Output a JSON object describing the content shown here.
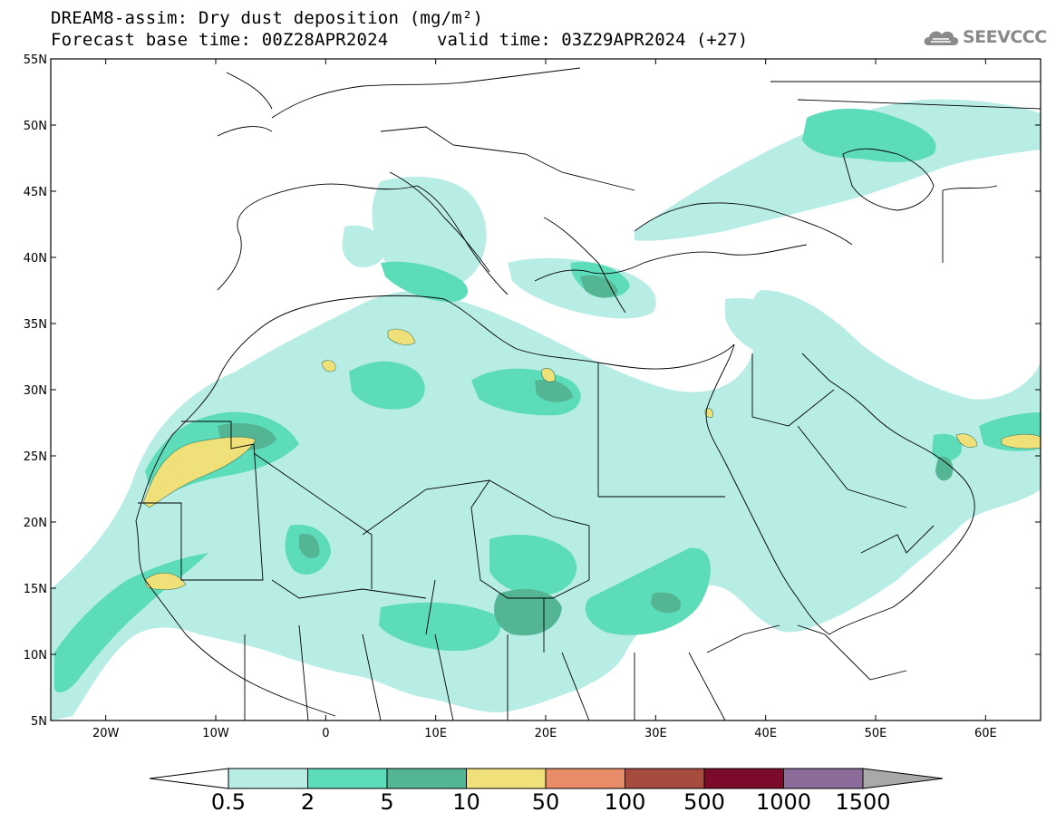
{
  "header": {
    "title_line1": "DREAM8-assim: Dry dust deposition (mg/m²)",
    "title_line2": "Forecast base time: 00Z28APR2024",
    "valid_time": "valid time: 03Z29APR2024 (+27)",
    "logo_text": "SEEVCCC",
    "logo_icon": "cloud-logo-icon"
  },
  "map": {
    "lon_range": [
      -25,
      65
    ],
    "lat_range": [
      5,
      55
    ],
    "lon_ticks": [
      {
        "value": -20,
        "label": "20W"
      },
      {
        "value": -10,
        "label": "10W"
      },
      {
        "value": 0,
        "label": "0"
      },
      {
        "value": 10,
        "label": "10E"
      },
      {
        "value": 20,
        "label": "20E"
      },
      {
        "value": 30,
        "label": "30E"
      },
      {
        "value": 40,
        "label": "40E"
      },
      {
        "value": 50,
        "label": "50E"
      },
      {
        "value": 60,
        "label": "60E"
      }
    ],
    "lat_ticks": [
      {
        "value": 55,
        "label": "55N"
      },
      {
        "value": 50,
        "label": "50N"
      },
      {
        "value": 45,
        "label": "45N"
      },
      {
        "value": 40,
        "label": "40N"
      },
      {
        "value": 35,
        "label": "35N"
      },
      {
        "value": 30,
        "label": "30N"
      },
      {
        "value": 25,
        "label": "25N"
      },
      {
        "value": 20,
        "label": "20N"
      },
      {
        "value": 15,
        "label": "15N"
      },
      {
        "value": 10,
        "label": "10N"
      },
      {
        "value": 5,
        "label": "5N"
      }
    ]
  },
  "colorbar": {
    "bins": [
      {
        "color": "#b8ede6"
      },
      {
        "color": "#5ddcb9"
      },
      {
        "color": "#54b594"
      },
      {
        "color": "#f0e07a"
      },
      {
        "color": "#e98c6a"
      },
      {
        "color": "#a84b3f"
      },
      {
        "color": "#7c0a2b"
      },
      {
        "color": "#8b6c9b"
      }
    ],
    "under_color": "#ffffff",
    "over_color": "#a9a9a9",
    "labels": [
      "0.5",
      "2",
      "5",
      "10",
      "50",
      "100",
      "500",
      "1000",
      "1500"
    ]
  },
  "colors": {
    "level1": "#b8ede6",
    "level2": "#5ddcb9",
    "level3": "#54b594",
    "level4": "#f0e07a"
  }
}
